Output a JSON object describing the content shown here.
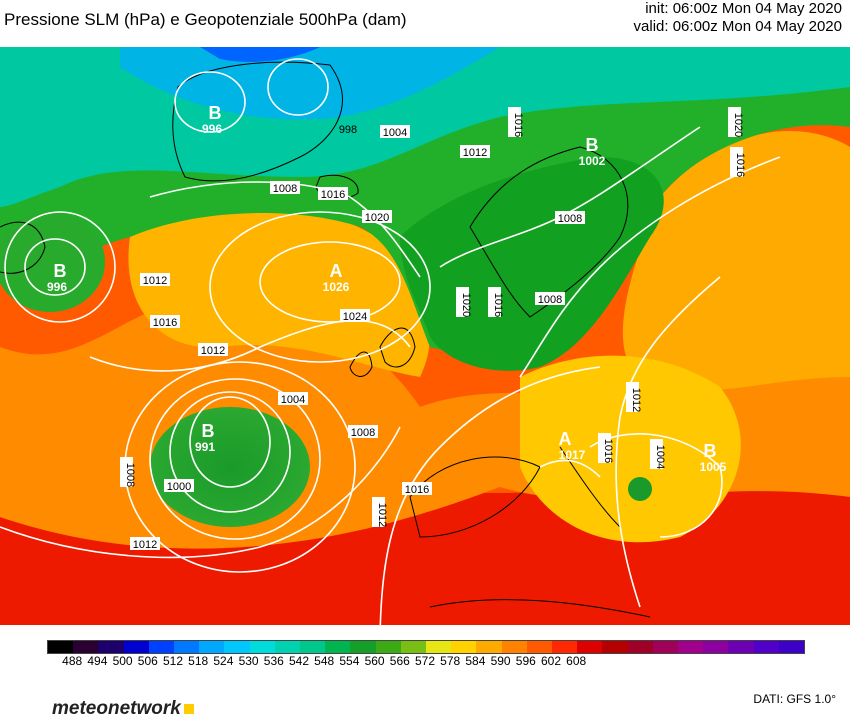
{
  "header": {
    "title": "Pressione SLM (hPa) e Geopotenziale 500hPa (dam)",
    "init": "init: 06:00z Mon 04 May 2020",
    "valid": "valid: 06:00z Mon 04 May 2020"
  },
  "map": {
    "pressure_centers": [
      {
        "letter": "B",
        "value": "996"
      },
      {
        "letter": "B",
        "value": "996"
      },
      {
        "letter": "B",
        "value": "1002"
      },
      {
        "letter": "A",
        "value": "1026"
      },
      {
        "letter": "B",
        "value": "991"
      },
      {
        "letter": "A",
        "value": "1017"
      },
      {
        "letter": "B",
        "value": "1005"
      }
    ],
    "isobar_labels": [
      "1008",
      "1012",
      "1004",
      "1012",
      "1020",
      "1016",
      "1008",
      "1016",
      "1020",
      "1024",
      "1012",
      "1016",
      "1008",
      "1016",
      "1004",
      "1008",
      "1012",
      "1016",
      "1000",
      "1012",
      "1012",
      "1008",
      "1016",
      "1020",
      "1016",
      "1004",
      "998"
    ]
  },
  "legend": {
    "values": [
      "488",
      "494",
      "500",
      "506",
      "512",
      "518",
      "524",
      "530",
      "536",
      "542",
      "548",
      "554",
      "560",
      "566",
      "572",
      "578",
      "584",
      "590",
      "596",
      "602",
      "608"
    ],
    "colors": [
      "#000000",
      "#2a0033",
      "#1c006e",
      "#0000d0",
      "#0040ff",
      "#0078ff",
      "#00a8ff",
      "#00c8ff",
      "#00dcdc",
      "#00d2b0",
      "#00c88c",
      "#00b450",
      "#14a028",
      "#3caa14",
      "#78be14",
      "#e6e614",
      "#ffd200",
      "#ffaa00",
      "#ff8200",
      "#ff5a00",
      "#ff2800",
      "#dc0000",
      "#b40000",
      "#a00028",
      "#a0005a",
      "#a0008c",
      "#8c00a0",
      "#6e00b4",
      "#5000c8",
      "#3c00c8"
    ]
  },
  "footer": {
    "brand": "meteonetwork",
    "source": "DATI: GFS 1.0°"
  }
}
